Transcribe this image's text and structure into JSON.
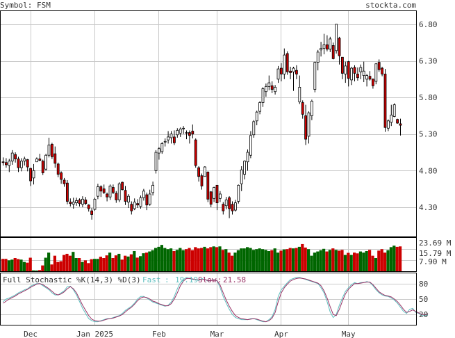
{
  "header": {
    "symbol_label": "Symbol: FSM",
    "site": "stockta.com"
  },
  "colors": {
    "up_fill": "#ffffff",
    "down_fill": "#cc0000",
    "candle_outline": "#000000",
    "volume_up": "#006600",
    "volume_down": "#cc0000",
    "fast_line": "#5fbfbf",
    "slow_line": "#993366",
    "grid": "#c8c8c8"
  },
  "chart_data": [
    {
      "type": "candlestick",
      "title": "Symbol: FSM",
      "y_ticks": [
        4.3,
        4.8,
        5.3,
        5.8,
        6.3,
        6.8
      ],
      "y_tick_labels": [
        "4.30",
        "4.80",
        "5.30",
        "5.80",
        "6.30",
        "6.80"
      ],
      "ylim": [
        3.9,
        6.98
      ],
      "x_labels": [
        "Dec",
        "Jan 2025",
        "Feb",
        "Mar",
        "Apr",
        "May"
      ],
      "x_label_index": [
        9,
        30,
        51,
        70,
        91,
        113
      ],
      "grid": true,
      "candles": [
        [
          4.92,
          4.98,
          4.87,
          4.91
        ],
        [
          4.91,
          4.97,
          4.84,
          4.88
        ],
        [
          4.87,
          4.96,
          4.78,
          4.93
        ],
        [
          4.93,
          5.08,
          4.88,
          5.04
        ],
        [
          5.02,
          5.05,
          4.91,
          4.96
        ],
        [
          4.96,
          4.99,
          4.78,
          4.84
        ],
        [
          4.84,
          4.97,
          4.79,
          4.93
        ],
        [
          4.93,
          4.99,
          4.87,
          4.96
        ],
        [
          4.95,
          4.96,
          4.79,
          4.85
        ],
        [
          4.83,
          4.84,
          4.59,
          4.66
        ],
        [
          4.7,
          4.89,
          4.61,
          4.8
        ],
        [
          4.92,
          4.98,
          4.92,
          4.96
        ],
        [
          4.96,
          5.03,
          4.93,
          4.94
        ],
        [
          4.93,
          4.95,
          4.74,
          4.77
        ],
        [
          4.82,
          5.03,
          4.8,
          5.01
        ],
        [
          5.01,
          5.25,
          4.98,
          5.15
        ],
        [
          5.16,
          5.18,
          4.96,
          4.99
        ],
        [
          5.03,
          5.13,
          4.84,
          4.9
        ],
        [
          4.89,
          4.91,
          4.71,
          4.75
        ],
        [
          4.77,
          4.79,
          4.62,
          4.68
        ],
        [
          4.67,
          4.7,
          4.58,
          4.62
        ],
        [
          4.63,
          4.67,
          4.34,
          4.38
        ],
        [
          4.37,
          4.42,
          4.31,
          4.35
        ],
        [
          4.34,
          4.43,
          4.28,
          4.37
        ],
        [
          4.36,
          4.43,
          4.32,
          4.39
        ],
        [
          4.4,
          4.42,
          4.31,
          4.35
        ],
        [
          4.34,
          4.45,
          4.3,
          4.41
        ],
        [
          4.4,
          4.44,
          4.33,
          4.35
        ],
        [
          4.33,
          4.34,
          4.24,
          4.28
        ],
        [
          4.25,
          4.29,
          4.13,
          4.2
        ],
        [
          4.27,
          4.43,
          4.25,
          4.41
        ],
        [
          4.45,
          4.62,
          4.41,
          4.58
        ],
        [
          4.58,
          4.6,
          4.44,
          4.52
        ],
        [
          4.55,
          4.61,
          4.48,
          4.5
        ],
        [
          4.48,
          4.5,
          4.38,
          4.44
        ],
        [
          4.44,
          4.61,
          4.4,
          4.59
        ],
        [
          4.57,
          4.61,
          4.48,
          4.5
        ],
        [
          4.49,
          4.52,
          4.36,
          4.4
        ],
        [
          4.4,
          4.64,
          4.37,
          4.62
        ],
        [
          4.64,
          4.65,
          4.53,
          4.54
        ],
        [
          4.53,
          4.59,
          4.33,
          4.38
        ],
        [
          4.37,
          4.48,
          4.29,
          4.45
        ],
        [
          4.34,
          4.38,
          4.2,
          4.25
        ],
        [
          4.28,
          4.42,
          4.26,
          4.37
        ],
        [
          4.35,
          4.41,
          4.29,
          4.33
        ],
        [
          4.31,
          4.46,
          4.28,
          4.43
        ],
        [
          4.43,
          4.55,
          4.39,
          4.52
        ],
        [
          4.47,
          4.5,
          4.26,
          4.33
        ],
        [
          4.34,
          4.54,
          4.32,
          4.48
        ],
        [
          4.5,
          4.65,
          4.46,
          4.6
        ],
        [
          4.8,
          5.08,
          4.76,
          5.05
        ],
        [
          5.04,
          5.12,
          4.95,
          5.1
        ],
        [
          5.06,
          5.19,
          5.03,
          5.17
        ],
        [
          5.19,
          5.24,
          5.13,
          5.2
        ],
        [
          5.22,
          5.34,
          5.17,
          5.26
        ],
        [
          5.25,
          5.34,
          5.17,
          5.3
        ],
        [
          5.26,
          5.35,
          5.15,
          5.18
        ],
        [
          5.29,
          5.38,
          5.25,
          5.35
        ],
        [
          5.31,
          5.39,
          5.26,
          5.37
        ],
        [
          5.38,
          5.41,
          5.3,
          5.38
        ],
        [
          5.32,
          5.35,
          5.23,
          5.31
        ],
        [
          5.32,
          5.35,
          5.17,
          5.28
        ],
        [
          5.34,
          5.43,
          5.24,
          5.3
        ],
        [
          5.22,
          5.24,
          4.84,
          4.87
        ],
        [
          4.84,
          4.86,
          4.65,
          4.72
        ],
        [
          4.73,
          4.76,
          4.54,
          4.59
        ],
        [
          4.72,
          4.86,
          4.72,
          4.85
        ],
        [
          4.78,
          4.79,
          4.37,
          4.41
        ],
        [
          4.51,
          4.52,
          4.3,
          4.34
        ],
        [
          4.42,
          4.58,
          4.37,
          4.57
        ],
        [
          4.6,
          4.6,
          4.26,
          4.36
        ],
        [
          4.42,
          4.52,
          4.37,
          4.48
        ],
        [
          4.34,
          4.37,
          4.2,
          4.25
        ],
        [
          4.32,
          4.44,
          4.27,
          4.4
        ],
        [
          4.43,
          4.45,
          4.15,
          4.28
        ],
        [
          4.34,
          4.38,
          4.2,
          4.25
        ],
        [
          4.26,
          4.4,
          4.24,
          4.36
        ],
        [
          4.38,
          4.61,
          4.35,
          4.6
        ],
        [
          4.62,
          4.86,
          4.52,
          4.81
        ],
        [
          4.75,
          4.94,
          4.68,
          4.93
        ],
        [
          4.92,
          5.09,
          4.8,
          5.05
        ],
        [
          5.01,
          5.34,
          4.97,
          5.28
        ],
        [
          5.29,
          5.49,
          5.25,
          5.47
        ],
        [
          5.48,
          5.62,
          5.42,
          5.6
        ],
        [
          5.61,
          5.75,
          5.57,
          5.73
        ],
        [
          5.73,
          5.94,
          5.67,
          5.92
        ],
        [
          5.88,
          5.99,
          5.81,
          5.95
        ],
        [
          5.95,
          6.1,
          5.9,
          6.0
        ],
        [
          5.96,
          6.02,
          5.86,
          5.91
        ],
        [
          5.88,
          5.97,
          5.84,
          5.94
        ],
        [
          6.05,
          6.23,
          6.0,
          6.19
        ],
        [
          6.2,
          6.27,
          6.02,
          6.12
        ],
        [
          6.12,
          6.47,
          6.05,
          6.38
        ],
        [
          6.4,
          6.43,
          6.11,
          6.15
        ],
        [
          6.16,
          6.22,
          6.05,
          6.14
        ],
        [
          6.15,
          6.22,
          5.89,
          6.2
        ],
        [
          6.17,
          6.24,
          6.05,
          6.12
        ],
        [
          5.74,
          6.1,
          5.71,
          5.94
        ],
        [
          5.73,
          5.76,
          5.51,
          5.57
        ],
        [
          5.55,
          5.7,
          5.15,
          5.23
        ],
        [
          5.27,
          5.61,
          5.17,
          5.59
        ],
        [
          5.55,
          5.77,
          5.49,
          5.75
        ],
        [
          5.91,
          6.29,
          5.87,
          6.28
        ],
        [
          6.28,
          6.45,
          6.17,
          6.42
        ],
        [
          6.45,
          6.56,
          6.36,
          6.47
        ],
        [
          6.47,
          6.67,
          6.39,
          6.52
        ],
        [
          6.52,
          6.65,
          6.43,
          6.46
        ],
        [
          6.46,
          6.63,
          6.42,
          6.6
        ],
        [
          6.51,
          6.55,
          6.32,
          6.33
        ],
        [
          6.44,
          6.8,
          6.4,
          6.8
        ],
        [
          6.61,
          6.63,
          6.25,
          6.37
        ],
        [
          6.35,
          6.35,
          6.05,
          6.13
        ],
        [
          6.12,
          6.29,
          6.0,
          6.23
        ],
        [
          6.29,
          6.3,
          5.95,
          6.06
        ],
        [
          6.04,
          6.22,
          5.97,
          6.2
        ],
        [
          6.21,
          6.24,
          6.02,
          6.13
        ],
        [
          6.12,
          6.21,
          6.03,
          6.07
        ],
        [
          6.15,
          6.25,
          6.05,
          6.21
        ],
        [
          6.1,
          6.29,
          6.01,
          6.16
        ],
        [
          6.05,
          6.12,
          5.95,
          6.1
        ],
        [
          6.09,
          6.16,
          6.03,
          6.05
        ],
        [
          6.05,
          6.06,
          5.92,
          5.96
        ],
        [
          6.02,
          6.27,
          5.98,
          6.26
        ],
        [
          6.28,
          6.32,
          6.15,
          6.18
        ],
        [
          6.2,
          6.22,
          6.09,
          6.12
        ],
        [
          6.12,
          6.19,
          5.33,
          5.39
        ],
        [
          5.38,
          5.5,
          5.34,
          5.48
        ],
        [
          5.46,
          5.7,
          5.41,
          5.56
        ],
        [
          5.54,
          5.72,
          5.53,
          5.7
        ],
        [
          5.5,
          5.51,
          5.44,
          5.45
        ],
        [
          5.44,
          5.51,
          5.28,
          5.42
        ]
      ]
    },
    {
      "type": "bar",
      "title": "Volume",
      "y_tick_labels": [
        "23.69 M",
        "15.79 M",
        "7.90 M"
      ],
      "ylim": [
        0,
        31.58
      ],
      "values": [
        11.7,
        11.7,
        10.3,
        11.0,
        12.5,
        11.5,
        11.0,
        8.8,
        8.1,
        12.8,
        0.8,
        0.7,
        1.1,
        5.5,
        12.8,
        17.6,
        6.4,
        14.7,
        8.8,
        9.5,
        15.4,
        16.5,
        14.7,
        18.3,
        12.5,
        12.5,
        8.8,
        10.3,
        7.7,
        11.4,
        11.7,
        11.7,
        13.7,
        12.5,
        15.0,
        17.6,
        12.5,
        15.0,
        16.5,
        11.0,
        14.7,
        13.9,
        16.0,
        19.1,
        12.9,
        14.3,
        17.0,
        17.6,
        18.7,
        19.9,
        22.0,
        23.1,
        24.9,
        22.0,
        20.9,
        21.6,
        19.1,
        20.2,
        22.0,
        19.9,
        20.9,
        22.0,
        19.9,
        22.8,
        21.6,
        22.0,
        23.1,
        21.6,
        22.8,
        23.5,
        22.8,
        23.5,
        20.2,
        20.9,
        17.6,
        14.7,
        17.6,
        19.9,
        21.6,
        21.6,
        22.8,
        22.0,
        20.2,
        20.9,
        21.6,
        20.9,
        20.2,
        19.1,
        19.9,
        21.6,
        17.6,
        19.5,
        20.6,
        20.9,
        22.0,
        21.6,
        22.0,
        23.1,
        25.7,
        22.4,
        20.9,
        14.7,
        17.6,
        18.7,
        19.9,
        21.2,
        18.7,
        20.2,
        21.6,
        20.2,
        19.5,
        20.2,
        15.4,
        17.4,
        15.4,
        17.6,
        16.9,
        18.7,
        17.6,
        19.1,
        20.2,
        14.7,
        12.5,
        19.5,
        20.9,
        17.6,
        19.9,
        22.8,
        24.2,
        23.1,
        23.5
      ]
    },
    {
      "type": "line",
      "title": "Full Stochastic %K(14,3) %D(3)",
      "y_ticks": [
        20,
        50,
        80
      ],
      "ylim": [
        0,
        100
      ],
      "series": [
        {
          "name": "Fast",
          "last_value": "19.19",
          "values": [
            45,
            50,
            52,
            55,
            58,
            62,
            65,
            68,
            70,
            75,
            78,
            80,
            80,
            76,
            72,
            68,
            62,
            58,
            58,
            62,
            66,
            74,
            75,
            68,
            58,
            45,
            32,
            22,
            12,
            8,
            6,
            6,
            8,
            10,
            12,
            12,
            14,
            16,
            18,
            22,
            28,
            32,
            36,
            42,
            50,
            55,
            55,
            52,
            48,
            44,
            42,
            40,
            38,
            36,
            38,
            44,
            55,
            70,
            82,
            88,
            92,
            90,
            88,
            88,
            86,
            90,
            88,
            85,
            86,
            88,
            85,
            72,
            55,
            42,
            30,
            20,
            14,
            12,
            10,
            10,
            10,
            12,
            12,
            10,
            8,
            6,
            6,
            10,
            16,
            30,
            55,
            68,
            75,
            82,
            88,
            90,
            92,
            92,
            90,
            88,
            86,
            84,
            82,
            80,
            72,
            62,
            45,
            25,
            14,
            20,
            38,
            52,
            65,
            72,
            78,
            82,
            80,
            82,
            82,
            84,
            82,
            76,
            68,
            62,
            58,
            56,
            55,
            52,
            48,
            42,
            34,
            26,
            22,
            30,
            32,
            24,
            22,
            18,
            18,
            19
          ]
        },
        {
          "name": "Slow",
          "last_value": "21.58",
          "values": [
            42,
            46,
            50,
            53,
            56,
            60,
            63,
            66,
            69,
            73,
            76,
            79,
            80,
            78,
            74,
            70,
            65,
            60,
            58,
            60,
            64,
            70,
            74,
            70,
            62,
            50,
            38,
            28,
            18,
            11,
            8,
            7,
            7,
            9,
            11,
            12,
            13,
            15,
            17,
            20,
            25,
            30,
            34,
            40,
            47,
            52,
            54,
            53,
            50,
            46,
            44,
            41,
            39,
            37,
            37,
            41,
            50,
            62,
            76,
            85,
            90,
            90,
            89,
            88,
            87,
            88,
            88,
            86,
            86,
            87,
            86,
            77,
            62,
            48,
            36,
            26,
            18,
            14,
            12,
            11,
            10,
            11,
            12,
            11,
            9,
            7,
            6,
            8,
            13,
            24,
            45,
            62,
            72,
            79,
            85,
            88,
            90,
            91,
            90,
            89,
            87,
            85,
            83,
            81,
            76,
            66,
            52,
            35,
            20,
            18,
            30,
            46,
            60,
            69,
            75,
            80,
            80,
            81,
            82,
            83,
            83,
            78,
            71,
            64,
            60,
            57,
            56,
            54,
            50,
            45,
            38,
            30,
            24,
            26,
            29,
            26,
            23,
            20,
            19,
            21.58
          ]
        }
      ]
    }
  ]
}
